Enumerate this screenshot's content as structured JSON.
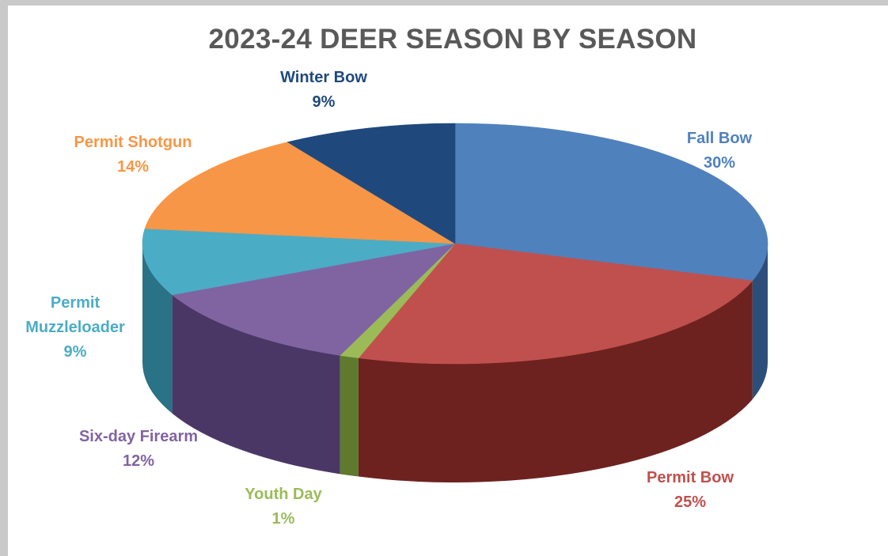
{
  "chart_data": {
    "type": "pie",
    "title": "2023-24 DEER SEASON BY SEASON",
    "slices": [
      {
        "name": "Fall Bow",
        "value": 30,
        "label": "30%",
        "color": "#4f81bd",
        "side": "#2c4e7a"
      },
      {
        "name": "Permit Bow",
        "value": 25,
        "label": "25%",
        "color": "#c0504d",
        "side": "#6e2220"
      },
      {
        "name": "Youth Day",
        "value": 1,
        "label": "1%",
        "color": "#9bbb59",
        "side": "#5f7a2e"
      },
      {
        "name": "Six-day Firearm",
        "value": 12,
        "label": "12%",
        "color": "#8064a2",
        "side": "#4b3765"
      },
      {
        "name": "Permit Muzzleloader",
        "value": 9,
        "label": "9%",
        "color": "#4bacc6",
        "side": "#2a7286"
      },
      {
        "name": "Permit Shotgun",
        "value": 14,
        "label": "14%",
        "color": "#f79646",
        "side": "#a85d1e"
      },
      {
        "name": "Winter Bow",
        "value": 9,
        "label": "9%",
        "color": "#1f497d",
        "side": "#102a4c"
      }
    ],
    "label_lines": [
      [
        "Fall Bow",
        "30%"
      ],
      [
        "Permit Bow",
        "25%"
      ],
      [
        "Youth Day",
        "1%"
      ],
      [
        "Six-day Firearm",
        "12%"
      ],
      [
        "Permit",
        "Muzzleloader",
        "9%"
      ],
      [
        "Permit Shotgun",
        "14%"
      ],
      [
        "Winter Bow",
        "9%"
      ]
    ],
    "label_colors": [
      "#4f81bd",
      "#c0504d",
      "#9bbb59",
      "#8064a2",
      "#4bacc6",
      "#f79646",
      "#1f497d"
    ],
    "legend": "none",
    "style": "3d-pie"
  }
}
